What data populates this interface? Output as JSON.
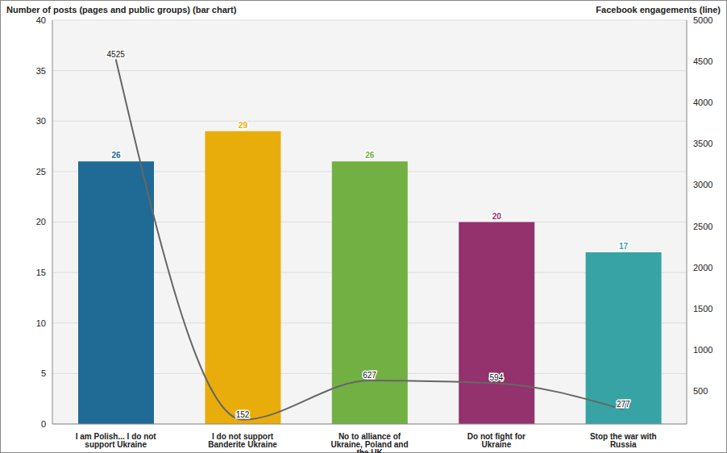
{
  "chart_data": {
    "type": "bar",
    "y_label": "Number of posts (pages and public groups) (bar chart)",
    "y2_label": "Facebook engagements (line)",
    "categories": [
      "I am Polish... I do not support Ukraine",
      "I do not support Banderite Ukraine",
      "No to alliance of Ukraine, Poland and the UK",
      "Do not fight for Ukraine",
      "Stop the war with Russia"
    ],
    "series": [
      {
        "type": "bar",
        "colors": [
          "#1f6b96",
          "#e9ad0b",
          "#72b043",
          "#93326c",
          "#38a3a5"
        ],
        "values": [
          26,
          29,
          26,
          20,
          17
        ]
      },
      {
        "type": "line",
        "axis": "y2",
        "color": "#666666",
        "values": [
          4525,
          152,
          627,
          594,
          277
        ]
      }
    ],
    "ylim": [
      0,
      40
    ],
    "yticks": [
      0,
      5,
      10,
      15,
      20,
      25,
      30,
      35,
      40
    ],
    "y2lim": [
      100,
      5000
    ],
    "y2ticks": [
      500,
      1000,
      1500,
      2000,
      2500,
      3000,
      3500,
      4000,
      4500,
      5000
    ],
    "grid": true,
    "data_labels": true
  }
}
